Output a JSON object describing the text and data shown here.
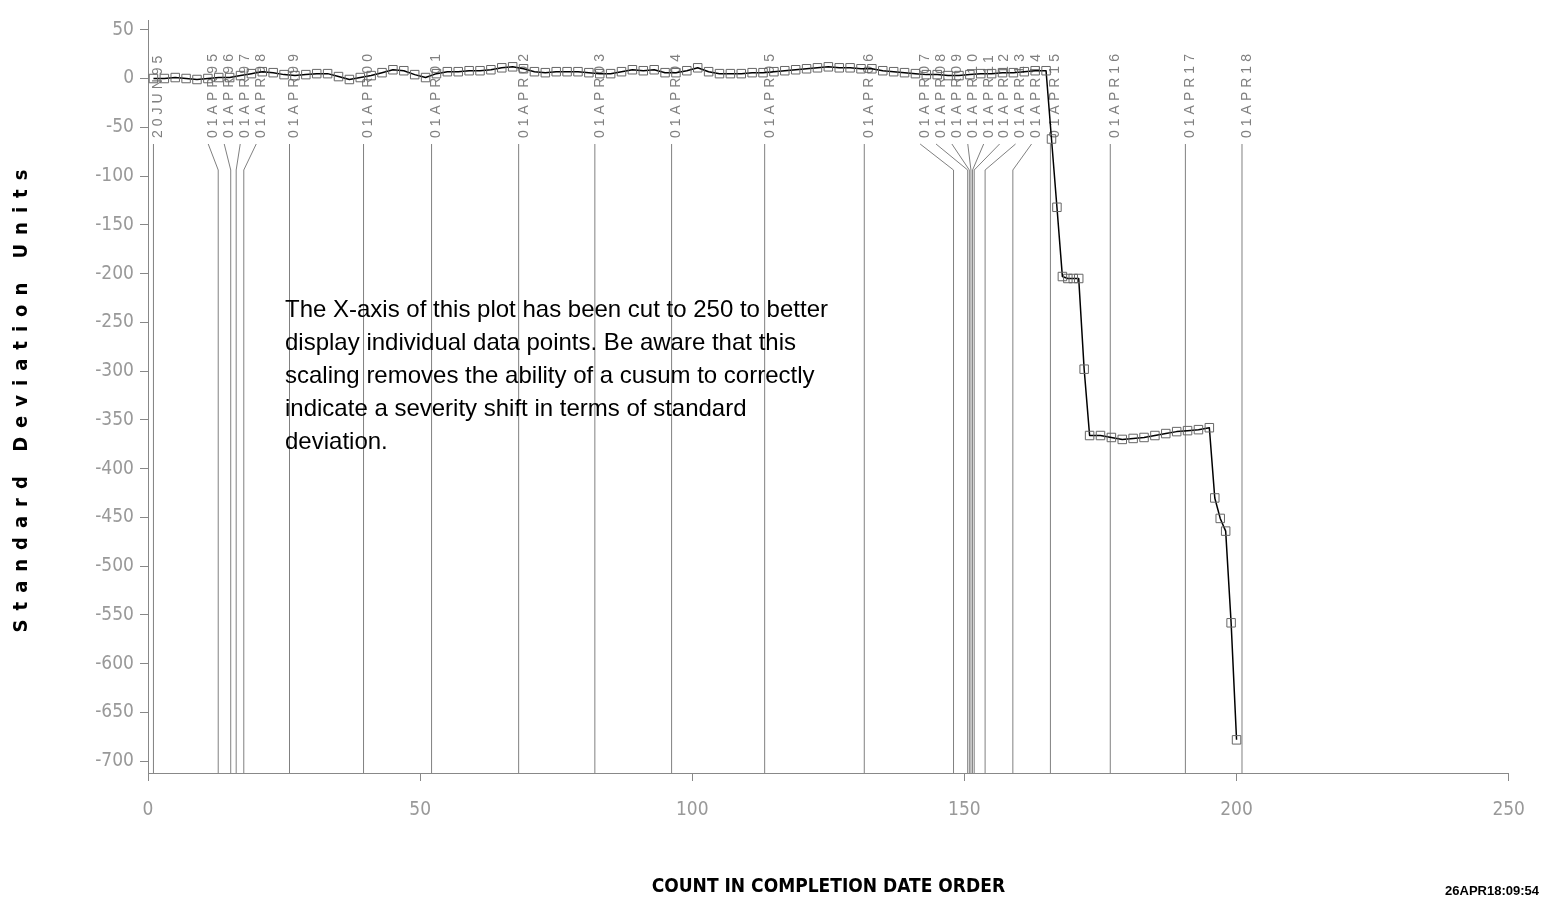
{
  "chart_data": {
    "type": "line",
    "xlabel": "COUNT IN COMPLETION DATE ORDER",
    "ylabel": "Standard Deviation Units",
    "xlim": [
      0,
      250
    ],
    "xticks": [
      0,
      50,
      100,
      150,
      200,
      250
    ],
    "ylim": [
      -712,
      60
    ],
    "yticks": [
      50,
      0,
      -50,
      -100,
      -150,
      -200,
      -250,
      -300,
      -350,
      -400,
      -450,
      -500,
      -550,
      -600,
      -650,
      -700
    ],
    "marker": "square",
    "line_style": "solid",
    "legend": false,
    "grid": false,
    "series": [
      {
        "color": "#000000",
        "x": [
          1,
          3,
          5,
          7,
          9,
          11,
          13,
          15,
          17,
          19,
          21,
          23,
          25,
          27,
          29,
          31,
          33,
          35,
          37,
          39,
          41,
          43,
          45,
          47,
          49,
          51,
          53,
          55,
          57,
          59,
          61,
          63,
          65,
          67,
          69,
          71,
          73,
          75,
          77,
          79,
          81,
          83,
          85,
          87,
          89,
          91,
          93,
          95,
          97,
          99,
          101,
          103,
          105,
          107,
          109,
          111,
          113,
          115,
          117,
          119,
          121,
          123,
          125,
          127,
          129,
          131,
          133,
          135,
          137,
          139,
          141,
          143,
          145,
          147,
          149,
          151,
          153,
          155,
          157,
          159,
          161,
          163,
          165,
          166,
          167,
          168,
          169,
          170,
          171,
          172,
          173,
          175,
          177,
          179,
          181,
          183,
          185,
          187,
          189,
          191,
          193,
          195,
          196,
          197,
          198,
          199,
          200
        ],
        "values": [
          0,
          0,
          1,
          0,
          -1,
          0,
          1,
          1,
          3,
          5,
          7,
          6,
          4,
          3,
          4,
          5,
          5,
          2,
          -1,
          1,
          3,
          6,
          9,
          8,
          4,
          1,
          5,
          7,
          7,
          8,
          8,
          9,
          11,
          12,
          10,
          7,
          6,
          7,
          7,
          7,
          6,
          5,
          5,
          7,
          9,
          8,
          9,
          6,
          6,
          8,
          11,
          7,
          5,
          5,
          5,
          6,
          6,
          7,
          8,
          9,
          10,
          11,
          12,
          11,
          11,
          10,
          10,
          8,
          7,
          6,
          5,
          4,
          4,
          3,
          3,
          4,
          5,
          5,
          6,
          6,
          7,
          8,
          8,
          -62,
          -132,
          -203,
          -205,
          -205,
          -205,
          -298,
          -366,
          -366,
          -368,
          -370,
          -369,
          -368,
          -366,
          -364,
          -362,
          -361,
          -360,
          -358,
          -430,
          -451,
          -464,
          -558,
          -678
        ]
      }
    ],
    "ref_lines": [
      {
        "axis": "x",
        "value": 1,
        "label": "20JUN95",
        "color": "#808080"
      },
      {
        "axis": "x",
        "value": 12.9,
        "label": "01APR95",
        "color": "#808080"
      },
      {
        "axis": "x",
        "value": 15.2,
        "label": "01APR96",
        "color": "#808080"
      },
      {
        "axis": "x",
        "value": 16.2,
        "label": "01APR97",
        "color": "#808080"
      },
      {
        "axis": "x",
        "value": 17.6,
        "label": "01APR98",
        "color": "#808080"
      },
      {
        "axis": "x",
        "value": 26,
        "label": "01APR99",
        "color": "#808080"
      },
      {
        "axis": "x",
        "value": 39.6,
        "label": "01APR00",
        "color": "#808080"
      },
      {
        "axis": "x",
        "value": 52.1,
        "label": "01APR01",
        "color": "#808080"
      },
      {
        "axis": "x",
        "value": 68.1,
        "label": "01APR02",
        "color": "#808080"
      },
      {
        "axis": "x",
        "value": 82.1,
        "label": "01APR03",
        "color": "#808080"
      },
      {
        "axis": "x",
        "value": 96.2,
        "label": "01APR04",
        "color": "#808080"
      },
      {
        "axis": "x",
        "value": 113.3,
        "label": "01APR05",
        "color": "#808080"
      },
      {
        "axis": "x",
        "value": 131.6,
        "label": "01APR06",
        "color": "#808080"
      },
      {
        "axis": "x",
        "value": 148,
        "label": "01APR07",
        "color": "#808080"
      },
      {
        "axis": "x",
        "value": 150.6,
        "label": "01APR08",
        "color": "#808080"
      },
      {
        "axis": "x",
        "value": 150.9,
        "label": "01APR09",
        "color": "#808080"
      },
      {
        "axis": "x",
        "value": 151.2,
        "label": "01APR10",
        "color": "#808080"
      },
      {
        "axis": "x",
        "value": 151.5,
        "label": "01APR11",
        "color": "#808080"
      },
      {
        "axis": "x",
        "value": 151.8,
        "label": "01APR12",
        "color": "#808080"
      },
      {
        "axis": "x",
        "value": 153.8,
        "label": "01APR13",
        "color": "#808080"
      },
      {
        "axis": "x",
        "value": 158.9,
        "label": "01APR14",
        "color": "#808080"
      },
      {
        "axis": "x",
        "value": 165.8,
        "label": "01APR15",
        "color": "#808080"
      },
      {
        "axis": "x",
        "value": 176.8,
        "label": "01APR16",
        "color": "#808080"
      },
      {
        "axis": "x",
        "value": 190.6,
        "label": "01APR17",
        "color": "#808080"
      },
      {
        "axis": "x",
        "value": 201,
        "label": "01APR18",
        "color": "#808080"
      }
    ],
    "annotations": [
      "The X-axis of this plot has been cut to 250 to better display individual data points. Be aware that this scaling removes the ability of a cusum to correctly indicate a severity shift in terms of standard deviation.",
      "26APR18:09:54"
    ]
  }
}
